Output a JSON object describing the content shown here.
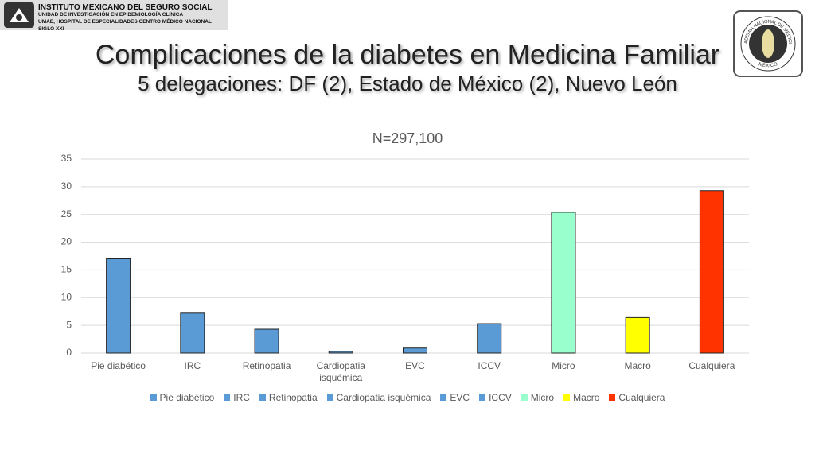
{
  "header": {
    "institution": [
      "INSTITUTO MEXICANO DEL SEGURO SOCIAL",
      "UNIDAD DE INVESTIGACIÓN EN EPIDEMIOLOGÍA CLÍNICA",
      "UMAE, HOSPITAL DE ESPECIALIDADES CENTRO MÉDICO NACIONAL SIGLO XXI"
    ],
    "logo_text": [
      "ACADEMIA NACIONAL DE MEDICINA",
      "MÉXICO"
    ]
  },
  "slide": {
    "title": "Complicaciones de la diabetes en Medicina Familiar",
    "subtitle": "5 delegaciones: DF (2), Estado de México (2), Nuevo León"
  },
  "chart_data": {
    "type": "bar",
    "title": "N=297,100",
    "categories": [
      "Pie diabético",
      "IRC",
      "Retinopatia",
      "Cardiopatia isquémica",
      "EVC",
      "ICCV",
      "Micro",
      "Macro",
      "Cualquiera"
    ],
    "values": [
      17,
      7.2,
      4.3,
      0.3,
      0.9,
      5.3,
      25.4,
      6.4,
      29.3
    ],
    "colors": [
      "#5b9bd5",
      "#5b9bd5",
      "#5b9bd5",
      "#5b9bd5",
      "#5b9bd5",
      "#5b9bd5",
      "#99ffcc",
      "#ffff00",
      "#ff3300"
    ],
    "ylim": [
      0,
      35
    ],
    "yticks": [
      0,
      5,
      10,
      15,
      20,
      25,
      30,
      35
    ],
    "grid": true,
    "legend": "bottom"
  }
}
